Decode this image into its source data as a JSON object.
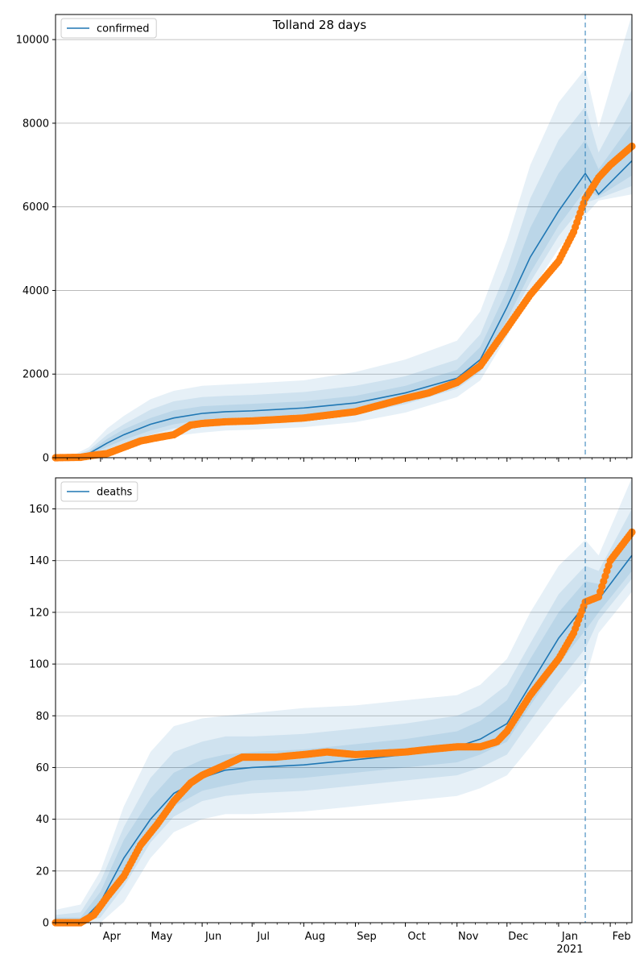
{
  "title": "Tolland 28 days",
  "colors": {
    "model": "#1f77b4",
    "observed": "#ff7f0e",
    "band": "#1f77b4",
    "forecast_line": "#1f77b4",
    "grid": "#b0b0b0"
  },
  "x_axis": {
    "months": [
      {
        "label": "Apr",
        "date": "2020-04-01"
      },
      {
        "label": "May",
        "date": "2020-05-01"
      },
      {
        "label": "Jun",
        "date": "2020-06-01"
      },
      {
        "label": "Jul",
        "date": "2020-07-01"
      },
      {
        "label": "Aug",
        "date": "2020-08-01"
      },
      {
        "label": "Sep",
        "date": "2020-09-01"
      },
      {
        "label": "Oct",
        "date": "2020-10-01"
      },
      {
        "label": "Nov",
        "date": "2020-11-01"
      },
      {
        "label": "Dec",
        "date": "2020-12-01"
      },
      {
        "label": "Jan",
        "date": "2021-01-01"
      },
      {
        "label": "Feb",
        "date": "2021-02-01"
      }
    ],
    "year_label": "2021",
    "range": [
      "2020-03-05",
      "2021-02-14"
    ]
  },
  "chart_data": [
    {
      "type": "line",
      "legend": "confirmed",
      "legend_position": "top-left",
      "grid": true,
      "ylim": [
        0,
        10600
      ],
      "yticks": [
        0,
        2000,
        4000,
        6000,
        8000,
        10000
      ],
      "forecast_start": "2021-01-17",
      "model": {
        "x": [
          "2020-03-05",
          "2020-03-15",
          "2020-03-25",
          "2020-04-05",
          "2020-04-15",
          "2020-05-01",
          "2020-05-15",
          "2020-06-01",
          "2020-06-15",
          "2020-07-01",
          "2020-08-01",
          "2020-09-01",
          "2020-10-01",
          "2020-11-01",
          "2020-11-15",
          "2020-12-01",
          "2020-12-15",
          "2021-01-01",
          "2021-01-17",
          "2021-01-25",
          "2021-02-14"
        ],
        "y": [
          0,
          10,
          100,
          350,
          550,
          800,
          950,
          1060,
          1100,
          1120,
          1190,
          1310,
          1550,
          1900,
          2350,
          3600,
          4800,
          5900,
          6800,
          6300,
          7100
        ]
      },
      "bands": [
        {
          "lower": [
            0,
            0,
            20,
            130,
            250,
            400,
            520,
            600,
            650,
            670,
            730,
            850,
            1080,
            1450,
            1850,
            2900,
            3950,
            5000,
            5800,
            6150,
            6300
          ],
          "upper": [
            0,
            50,
            250,
            700,
            1000,
            1400,
            1600,
            1720,
            1750,
            1780,
            1850,
            2050,
            2350,
            2800,
            3500,
            5200,
            7000,
            8500,
            9300,
            7900,
            10600
          ]
        },
        {
          "lower": [
            0,
            0,
            40,
            200,
            350,
            550,
            700,
            800,
            850,
            870,
            930,
            1050,
            1280,
            1650,
            2050,
            3150,
            4200,
            5300,
            6100,
            6200,
            6500
          ],
          "upper": [
            0,
            30,
            180,
            550,
            800,
            1150,
            1350,
            1450,
            1480,
            1500,
            1570,
            1720,
            1950,
            2350,
            2950,
            4500,
            6200,
            7600,
            8400,
            7300,
            8800
          ]
        },
        {
          "lower": [
            0,
            0,
            60,
            260,
            430,
            650,
            800,
            900,
            950,
            970,
            1040,
            1160,
            1400,
            1760,
            2180,
            3300,
            4420,
            5550,
            6400,
            6250,
            6750
          ],
          "upper": [
            0,
            20,
            140,
            450,
            680,
            950,
            1130,
            1230,
            1260,
            1290,
            1350,
            1480,
            1720,
            2100,
            2650,
            4000,
            5500,
            6800,
            7600,
            6900,
            8000
          ]
        }
      ],
      "observed": {
        "x": [
          "2020-03-05",
          "2020-03-20",
          "2020-03-28",
          "2020-04-05",
          "2020-04-15",
          "2020-04-25",
          "2020-05-05",
          "2020-05-15",
          "2020-05-25",
          "2020-06-01",
          "2020-06-15",
          "2020-07-01",
          "2020-08-01",
          "2020-09-01",
          "2020-10-01",
          "2020-10-15",
          "2020-11-01",
          "2020-11-15",
          "2020-12-01",
          "2020-12-15",
          "2021-01-01",
          "2021-01-10",
          "2021-01-17",
          "2021-01-25",
          "2021-02-01",
          "2021-02-14"
        ],
        "y": [
          0,
          10,
          60,
          100,
          250,
          400,
          480,
          550,
          780,
          820,
          860,
          880,
          950,
          1100,
          1420,
          1550,
          1800,
          2200,
          3100,
          3900,
          4700,
          5400,
          6200,
          6700,
          7000,
          7450
        ]
      }
    },
    {
      "type": "line",
      "legend": "deaths",
      "legend_position": "top-left",
      "grid": true,
      "ylim": [
        0,
        172
      ],
      "yticks": [
        0,
        20,
        40,
        60,
        80,
        100,
        120,
        140,
        160
      ],
      "forecast_start": "2021-01-17",
      "model": {
        "x": [
          "2020-03-05",
          "2020-03-20",
          "2020-04-01",
          "2020-04-15",
          "2020-05-01",
          "2020-05-15",
          "2020-06-01",
          "2020-06-15",
          "2020-07-01",
          "2020-08-01",
          "2020-09-01",
          "2020-10-01",
          "2020-11-01",
          "2020-11-15",
          "2020-12-01",
          "2020-12-15",
          "2021-01-01",
          "2021-01-17",
          "2021-01-25",
          "2021-02-14"
        ],
        "y": [
          0,
          0,
          8,
          25,
          40,
          50,
          56,
          59,
          60,
          61,
          63,
          65,
          68,
          71,
          77,
          92,
          110,
          123,
          125,
          142
        ]
      },
      "bands": [
        {
          "lower": [
            0,
            0,
            0,
            8,
            25,
            35,
            40,
            42,
            42,
            43,
            45,
            47,
            49,
            52,
            57,
            68,
            82,
            94,
            112,
            128
          ],
          "upper": [
            5,
            7,
            20,
            45,
            66,
            76,
            79,
            80,
            81,
            83,
            84,
            86,
            88,
            92,
            102,
            120,
            138,
            148,
            142,
            172
          ]
        },
        {
          "lower": [
            0,
            0,
            2,
            14,
            31,
            41,
            47,
            49,
            50,
            51,
            53,
            55,
            57,
            60,
            65,
            78,
            93,
            106,
            117,
            133
          ],
          "upper": [
            3,
            4,
            16,
            37,
            56,
            66,
            70,
            72,
            72,
            73,
            75,
            77,
            80,
            84,
            92,
            108,
            127,
            138,
            136,
            160
          ]
        },
        {
          "lower": [
            0,
            0,
            4,
            18,
            35,
            45,
            51,
            53,
            55,
            56,
            58,
            60,
            62,
            65,
            70,
            84,
            100,
            113,
            120,
            136
          ],
          "upper": [
            2,
            2,
            12,
            32,
            48,
            58,
            63,
            65,
            66,
            67,
            69,
            71,
            74,
            78,
            86,
            102,
            120,
            132,
            131,
            150
          ]
        }
      ],
      "observed": {
        "x": [
          "2020-03-05",
          "2020-03-20",
          "2020-03-28",
          "2020-04-05",
          "2020-04-15",
          "2020-04-25",
          "2020-05-05",
          "2020-05-15",
          "2020-05-25",
          "2020-06-01",
          "2020-06-15",
          "2020-06-25",
          "2020-07-15",
          "2020-08-01",
          "2020-08-15",
          "2020-09-01",
          "2020-10-01",
          "2020-10-15",
          "2020-11-01",
          "2020-11-15",
          "2020-11-25",
          "2020-12-01",
          "2020-12-15",
          "2021-01-01",
          "2021-01-10",
          "2021-01-17",
          "2021-01-25",
          "2021-02-01",
          "2021-02-14"
        ],
        "y": [
          0,
          0,
          3,
          10,
          18,
          30,
          38,
          47,
          54,
          57,
          61,
          64,
          64,
          65,
          66,
          65,
          66,
          67,
          68,
          68,
          70,
          74,
          88,
          102,
          112,
          124,
          126,
          140,
          151
        ]
      }
    }
  ]
}
